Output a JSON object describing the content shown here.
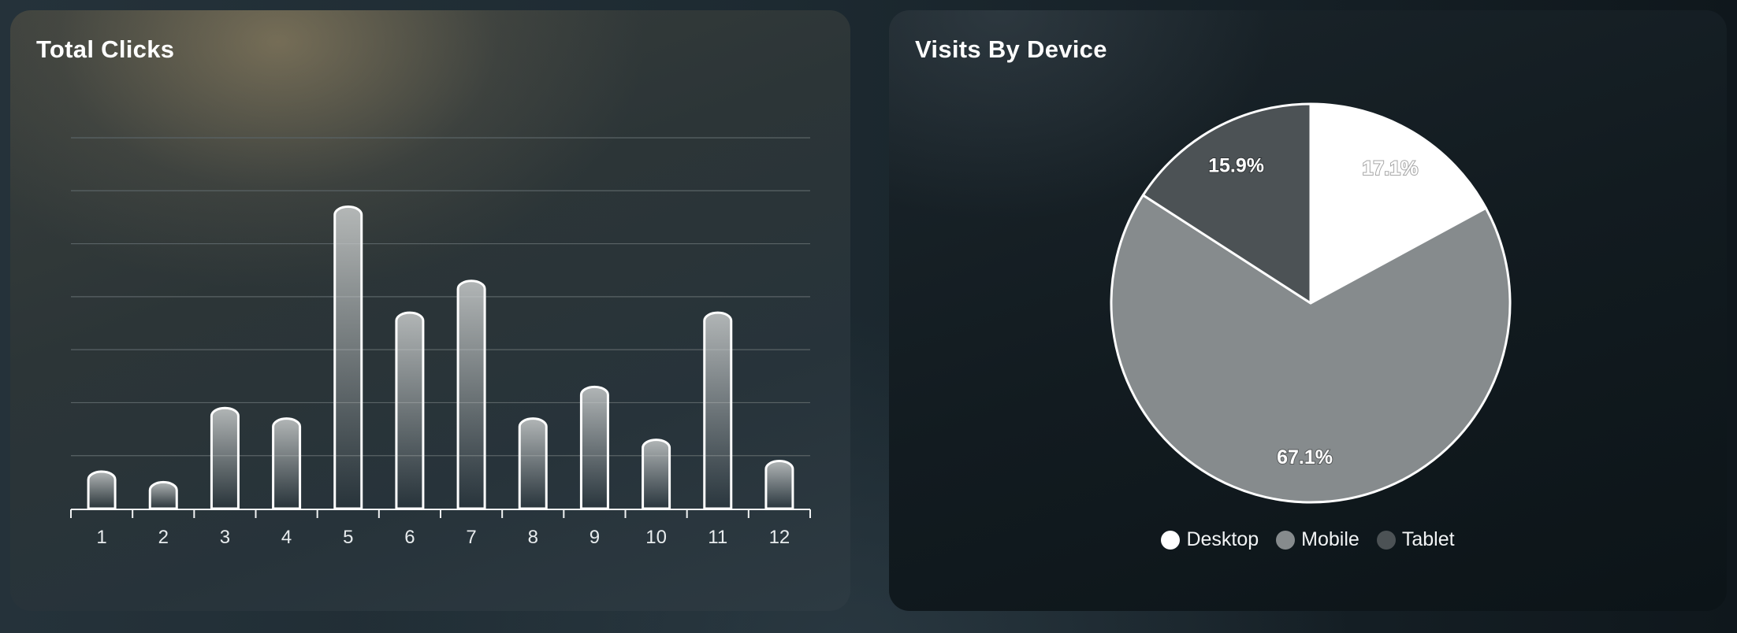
{
  "chart_data": [
    {
      "type": "bar",
      "title": "Total Clicks",
      "categories": [
        "1",
        "2",
        "3",
        "4",
        "5",
        "6",
        "7",
        "8",
        "9",
        "10",
        "11",
        "12"
      ],
      "values": [
        40,
        30,
        100,
        90,
        290,
        190,
        220,
        90,
        120,
        70,
        190,
        50
      ],
      "ylim": [
        0,
        350
      ],
      "grid": true,
      "colors": {
        "bar_stroke": "#ffffff",
        "bar_fill_top": "#c9cccc",
        "grid": "#5a6366",
        "axis": "#f0f2f3"
      }
    },
    {
      "type": "pie",
      "title": "Visits By Device",
      "labels": [
        "Desktop",
        "Mobile",
        "Tablet"
      ],
      "values": [
        17.1,
        67.1,
        15.9
      ],
      "value_labels": [
        "17.1%",
        "67.1%",
        "15.9%"
      ],
      "colors": [
        "#ffffff",
        "#868b8d",
        "#4c5255"
      ],
      "legend": "bottom"
    }
  ]
}
